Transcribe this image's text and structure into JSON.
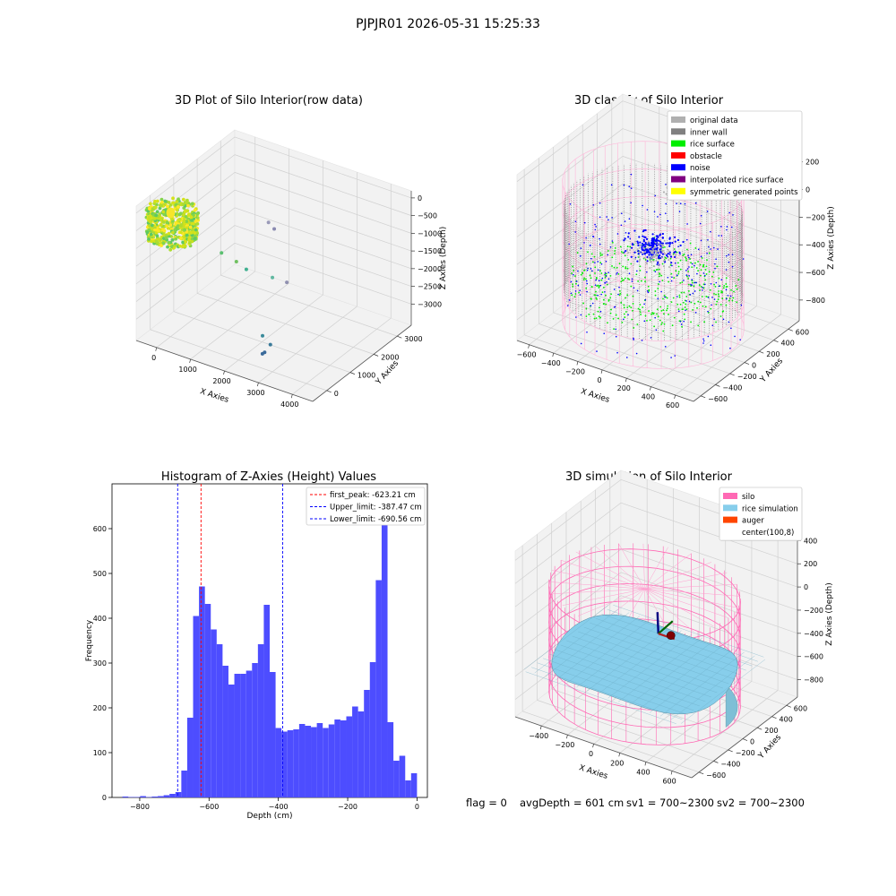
{
  "suptitle": "PJPJR01 2026-05-31 15:25:33",
  "footer": {
    "flag": "flag = 0",
    "avg_depth": "avgDepth = 601 cm",
    "sv1": "sv1 = 700~2300",
    "sv2": "sv2 = 700~2300"
  },
  "colors": {
    "pane": "#f2f2f2",
    "grid": "#d0d0d0",
    "hist_bar": "#4d4dff",
    "first_peak_line": "#ff0000",
    "limit_line": "#0000ff",
    "original": "#b0b0b0",
    "inner_wall": "#808080",
    "rice_surface": "#00ee00",
    "obstacle": "#ff0000",
    "noise": "#0000ff",
    "interpolated": "#800080",
    "symmetric": "#ffff00",
    "silo": "#ff69b4",
    "rice_sim": "#87ceeb",
    "auger": "#ff4500"
  },
  "chart_data": [
    {
      "id": "raw",
      "type": "scatter3d",
      "title": "3D Plot of Silo Interior(row data)",
      "xlabel": "X Axies",
      "ylabel": "Y Axies",
      "zlabel": "Z Axies (Depth)",
      "xlim": [
        -600,
        4600
      ],
      "ylim": [
        -600,
        3600
      ],
      "zlim": [
        -3600,
        200
      ],
      "x_ticks": [
        0,
        1000,
        2000,
        3000,
        4000
      ],
      "y_ticks": [
        0,
        1000,
        2000,
        3000
      ],
      "z_ticks": [
        -3000,
        -2500,
        -2000,
        -1500,
        -1000,
        -500,
        0
      ],
      "x_tick_labels": [
        "0",
        "1000",
        "2000",
        "3000",
        "4000"
      ],
      "y_tick_labels": [
        "0",
        "1000",
        "2000",
        "3000"
      ],
      "z_tick_labels": [
        "−3000",
        "−2500",
        "−2000",
        "−1500",
        "−1000",
        "−500",
        "0"
      ],
      "main_cluster": {
        "x": [
          -600,
          700
        ],
        "y": [
          -600,
          600
        ],
        "z": [
          -800,
          0
        ]
      },
      "scattered_points": [
        {
          "x": 1500,
          "y": 2000,
          "z": -900,
          "color": "#9a9ab8"
        },
        {
          "x": 1600,
          "y": 2100,
          "z": -1100,
          "color": "#8a8ab0"
        },
        {
          "x": 2800,
          "y": 900,
          "z": -1600,
          "color": "#9090b0"
        },
        {
          "x": 1400,
          "y": 1200,
          "z": -1850,
          "color": "#40b090"
        },
        {
          "x": 600,
          "y": 1300,
          "z": -1700,
          "color": "#5ac070"
        },
        {
          "x": 900,
          "y": 1500,
          "z": -1950,
          "color": "#70c060"
        },
        {
          "x": 2100,
          "y": 1300,
          "z": -1900,
          "color": "#60b8a0"
        },
        {
          "x": 2500,
          "y": 300,
          "z": -2900,
          "color": "#3a8a9a"
        },
        {
          "x": 2800,
          "y": 200,
          "z": -3000,
          "color": "#3a7a9a"
        },
        {
          "x": 2700,
          "y": 100,
          "z": -3200,
          "color": "#3a6a9a"
        },
        {
          "x": 2600,
          "y": 150,
          "z": -3300,
          "color": "#3a6a9a"
        }
      ]
    },
    {
      "id": "classify",
      "type": "scatter3d",
      "title": "3D classify of Silo Interior",
      "xlabel": "X Axies",
      "ylabel": "Y Axies",
      "zlabel": "Z Axies (Depth)",
      "xlim": [
        -700,
        750
      ],
      "ylim": [
        -700,
        750
      ],
      "zlim": [
        -950,
        250
      ],
      "x_ticks": [
        -600,
        -400,
        -200,
        0,
        200,
        400,
        600
      ],
      "y_ticks": [
        -600,
        -400,
        -200,
        0,
        200,
        400,
        600
      ],
      "z_ticks": [
        -800,
        -600,
        -400,
        -200,
        0,
        200
      ],
      "x_tick_labels": [
        "−600",
        "−400",
        "−200",
        "0",
        "200",
        "400",
        "600"
      ],
      "y_tick_labels": [
        "−600",
        "−400",
        "−200",
        "0",
        "200",
        "400",
        "600"
      ],
      "z_tick_labels": [
        "−800",
        "−600",
        "−400",
        "−200",
        "0",
        "200"
      ],
      "legend": [
        {
          "label": "original data",
          "color": "#b0b0b0"
        },
        {
          "label": "inner wall",
          "color": "#808080"
        },
        {
          "label": "rice surface",
          "color": "#00ee00"
        },
        {
          "label": "obstacle",
          "color": "#ff0000"
        },
        {
          "label": "noise",
          "color": "#0000ff"
        },
        {
          "label": "interpolated rice surface",
          "color": "#800080"
        },
        {
          "label": "symmetric generated points",
          "color": "#ffff00"
        }
      ],
      "silo_radius": 640,
      "silo_z": [
        -900,
        100
      ],
      "wall_z": [
        -700,
        -50
      ],
      "rice_z": -620,
      "legend_position": "top-right"
    },
    {
      "id": "hist",
      "type": "bar",
      "title": "Histogram of Z-Axies (Height) Values",
      "xlabel": "Depth (cm)",
      "ylabel": "Frequency",
      "xlim": [
        -880,
        30
      ],
      "ylim": [
        0,
        700
      ],
      "x_ticks": [
        -800,
        -600,
        -400,
        -200,
        0
      ],
      "y_ticks": [
        0,
        100,
        200,
        300,
        400,
        500,
        600
      ],
      "x_tick_labels": [
        "−800",
        "−600",
        "−400",
        "−200",
        "0"
      ],
      "y_tick_labels": [
        "0",
        "100",
        "200",
        "300",
        "400",
        "500",
        "600"
      ],
      "bin_start": -850,
      "bin_width": 17,
      "values": [
        2,
        1,
        1,
        3,
        1,
        2,
        3,
        5,
        8,
        12,
        60,
        178,
        405,
        471,
        432,
        375,
        342,
        294,
        252,
        276,
        276,
        283,
        300,
        342,
        430,
        280,
        155,
        147,
        150,
        152,
        164,
        160,
        157,
        166,
        155,
        163,
        174,
        172,
        181,
        203,
        192,
        240,
        302,
        485,
        662,
        168,
        82,
        93,
        38,
        54
      ],
      "vlines": [
        {
          "x": -623.21,
          "label": "first_peak: -623.21 cm",
          "color": "#ff0000"
        },
        {
          "x": -387.47,
          "label": "Upper_limit: -387.47 cm",
          "color": "#0000ff"
        },
        {
          "x": -690.56,
          "label": "Lower_limit: -690.56 cm",
          "color": "#0000ff"
        }
      ],
      "legend_position": "top-right"
    },
    {
      "id": "sim",
      "type": "surface3d",
      "title": "3D simulation of Silo Interior",
      "xlabel": "X Axies",
      "ylabel": "Y Axies",
      "zlabel": "Z Axies (Depth)",
      "xlim": [
        -600,
        750
      ],
      "ylim": [
        -700,
        750
      ],
      "zlim": [
        -950,
        480
      ],
      "x_ticks": [
        -400,
        -200,
        0,
        200,
        400,
        600
      ],
      "y_ticks": [
        -600,
        -400,
        -200,
        0,
        200,
        400,
        600
      ],
      "z_ticks": [
        -800,
        -600,
        -400,
        -200,
        0,
        200,
        400
      ],
      "x_tick_labels": [
        "−400",
        "−200",
        "0",
        "200",
        "400",
        "600"
      ],
      "y_tick_labels": [
        "−600",
        "−400",
        "−200",
        "0",
        "200",
        "400",
        "600"
      ],
      "z_tick_labels": [
        "−800",
        "−600",
        "−400",
        "−200",
        "0",
        "200",
        "400"
      ],
      "legend": [
        {
          "label": "silo",
          "color": "#ff69b4"
        },
        {
          "label": "rice simulation",
          "color": "#87ceeb"
        },
        {
          "label": "auger",
          "color": "#ff4500"
        },
        {
          "label": "center(100,8)",
          "color": ""
        }
      ],
      "silo_radius": 640,
      "silo_z": [
        -900,
        50
      ],
      "rice_z": -600,
      "legend_position": "top-right"
    }
  ]
}
